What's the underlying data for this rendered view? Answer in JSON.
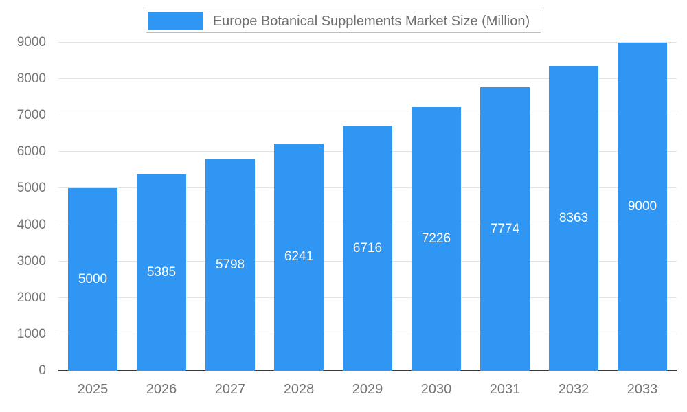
{
  "chart_data": {
    "type": "bar",
    "title": "Europe Botanical Supplements Market Size (Million)",
    "categories": [
      "2025",
      "2026",
      "2027",
      "2028",
      "2029",
      "2030",
      "2031",
      "2032",
      "2033"
    ],
    "values": [
      5000,
      5385,
      5798,
      6241,
      6716,
      7226,
      7774,
      8363,
      9000
    ],
    "xlabel": "",
    "ylabel": "",
    "ylim": [
      0,
      9000
    ],
    "ytick_step": 1000,
    "grid": true,
    "legend_position": "top",
    "colors": {
      "bar": "#2F96F3",
      "bar_value_label": "#ffffff",
      "axis_text": "#757575",
      "gridline": "#e3e3e3",
      "axis_line": "#3b3b3b",
      "legend_border": "#bdbdbd",
      "title_text": "#6e6e6e"
    }
  }
}
